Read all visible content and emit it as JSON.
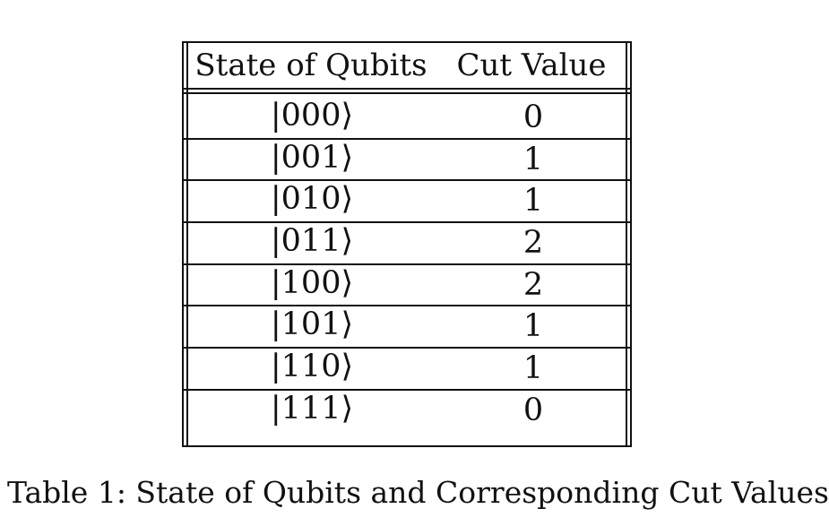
{
  "table": {
    "headers": [
      "State of Qubits",
      "Cut Value"
    ],
    "rows": [
      {
        "state": "|000⟩",
        "cut": "0"
      },
      {
        "state": "|001⟩",
        "cut": "1"
      },
      {
        "state": "|010⟩",
        "cut": "1"
      },
      {
        "state": "|011⟩",
        "cut": "2"
      },
      {
        "state": "|100⟩",
        "cut": "2"
      },
      {
        "state": "|101⟩",
        "cut": "1"
      },
      {
        "state": "|110⟩",
        "cut": "1"
      },
      {
        "state": "|111⟩",
        "cut": "0"
      }
    ]
  },
  "caption": "Table 1: State of Qubits and Corresponding Cut Values"
}
